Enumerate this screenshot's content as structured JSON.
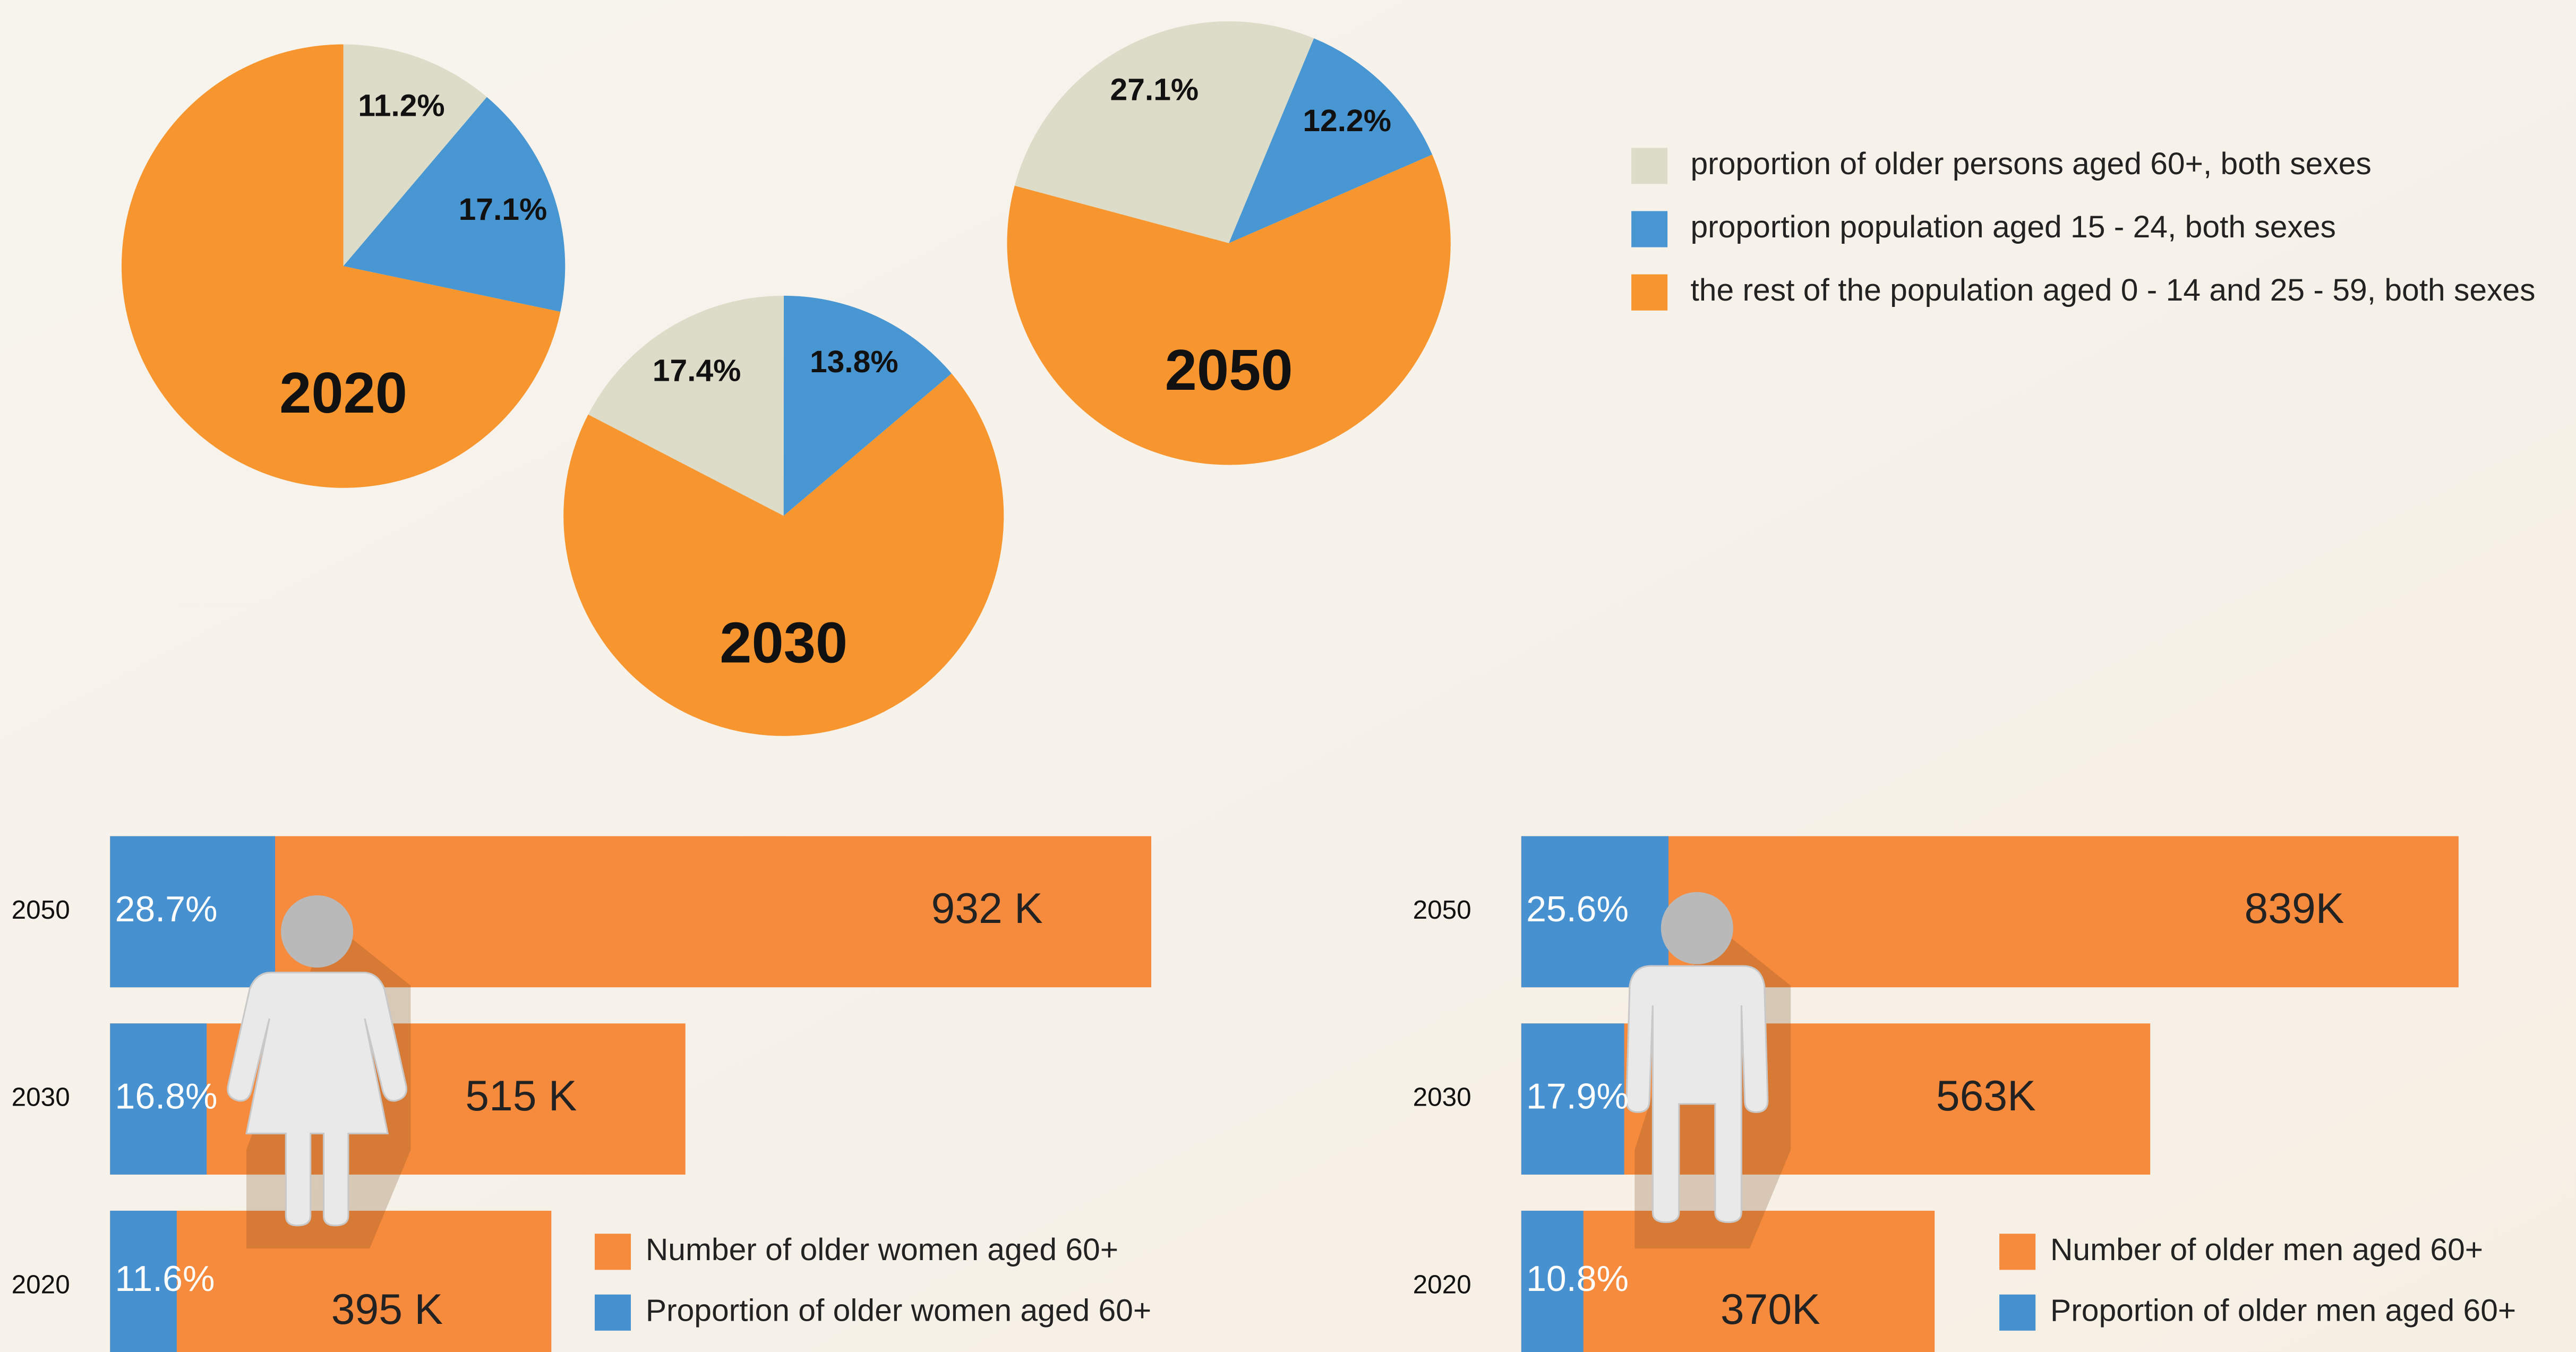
{
  "chart_data": [
    {
      "type": "pie",
      "labels": [
        "proportion of older persons aged 60+, both sexes",
        "proportion population aged 15 - 24, both sexes",
        "the rest of the population aged 0 - 14 and 25 - 59, both sexes"
      ],
      "colors": [
        "#dcdcc8",
        "#4896d2",
        "#f7962f"
      ],
      "pies": [
        {
          "year": "2020",
          "values": [
            11.2,
            17.1,
            71.7
          ],
          "value_labels": [
            "11.2%",
            "17.1%",
            null
          ]
        },
        {
          "year": "2030",
          "values": [
            17.4,
            13.8,
            68.8
          ],
          "value_labels": [
            "17.4%",
            "13.8%",
            null
          ]
        },
        {
          "year": "2050",
          "values": [
            27.1,
            12.2,
            60.7
          ],
          "value_labels": [
            "27.1%",
            "12.2%",
            null
          ]
        }
      ]
    },
    {
      "type": "bar",
      "categories": [
        "2050",
        "2030",
        "2020"
      ],
      "series": [
        {
          "name": "Number of older women aged 60+",
          "color": "#f68a3d",
          "values": [
            932,
            515,
            395
          ],
          "value_labels": [
            "932 K",
            "515 K",
            "395 K"
          ]
        },
        {
          "name": "Proportion of older women aged 60+",
          "color": "#4791d1",
          "values": [
            28.7,
            16.8,
            11.6
          ],
          "value_labels": [
            "28.7%",
            "16.8%",
            "11.6%"
          ]
        }
      ]
    },
    {
      "type": "bar",
      "categories": [
        "2050",
        "2030",
        "2020"
      ],
      "series": [
        {
          "name": "Number of older men aged 60+",
          "color": "#f68a3d",
          "values": [
            839,
            563,
            370
          ],
          "value_labels": [
            "839K",
            "563K",
            "370K"
          ]
        },
        {
          "name": "Proportion of older men aged 60+",
          "color": "#4791d1",
          "values": [
            25.6,
            17.9,
            10.8
          ],
          "value_labels": [
            "25.6%",
            "17.9%",
            "10.8%"
          ]
        }
      ]
    }
  ]
}
